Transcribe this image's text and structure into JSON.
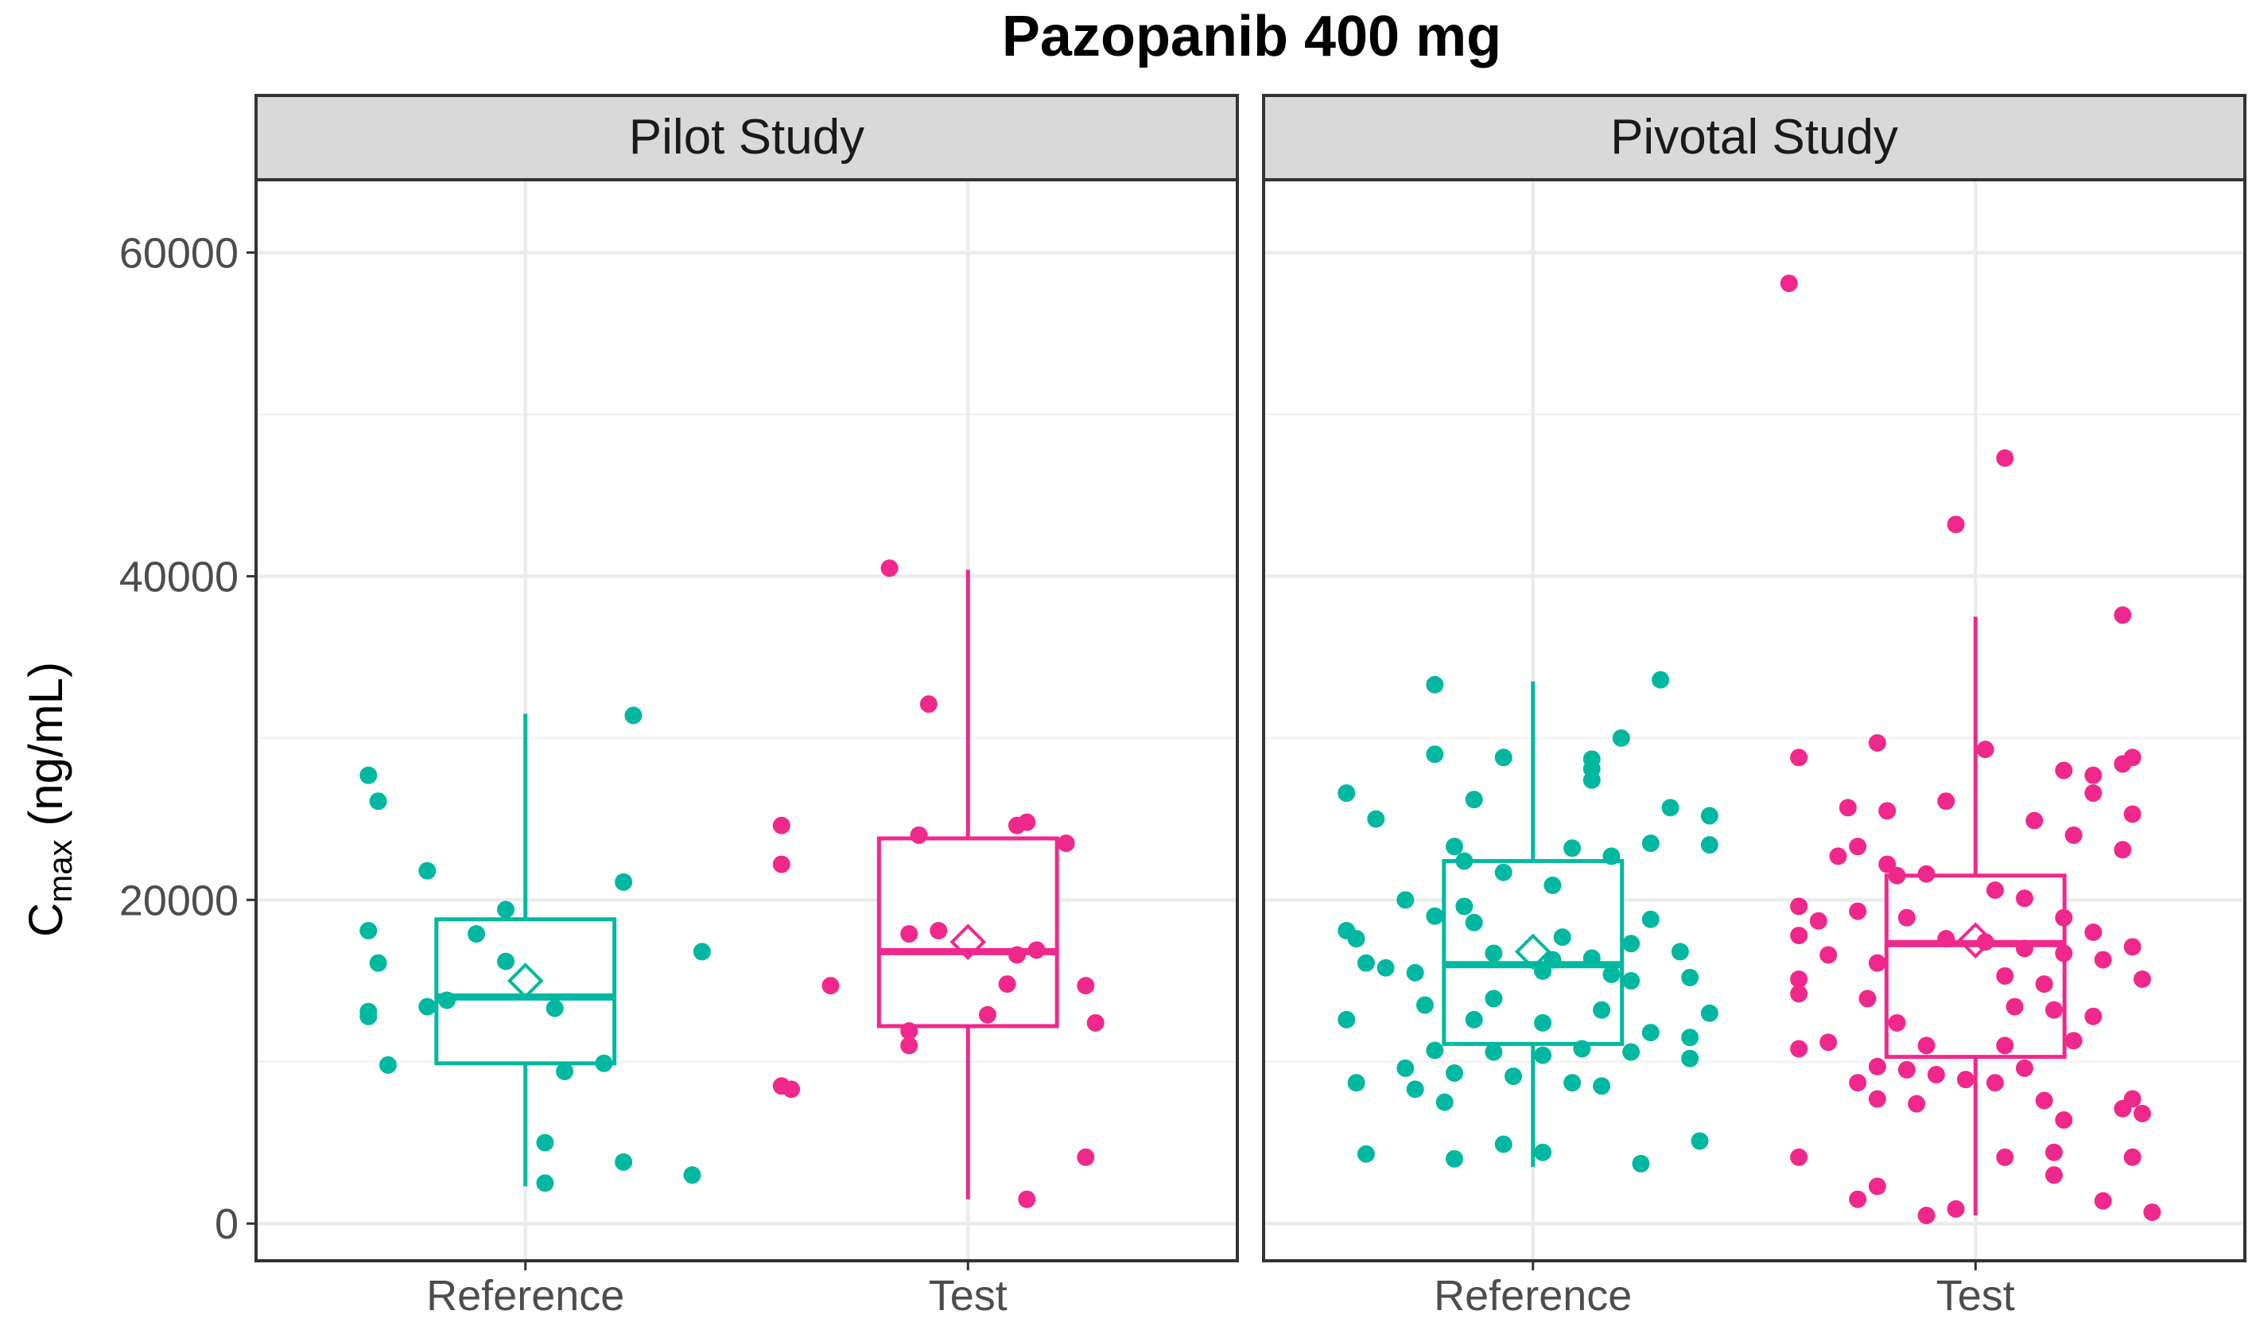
{
  "chart_data": {
    "type": "boxplot",
    "title": "Pazopanib 400 mg",
    "ylabel_main": "C",
    "ylabel_sub": "max",
    "ylabel_rest": " (ng/mL)",
    "ylim": [
      -2300,
      64500
    ],
    "yticks": [
      0,
      20000,
      40000,
      60000
    ],
    "ytick_labels": [
      "0",
      "20000",
      "40000",
      "60000"
    ],
    "categories": [
      "Reference",
      "Test"
    ],
    "colors": {
      "Reference": "#00b8a0",
      "Test": "#f0288c",
      "strip_bg": "#d9d9d9",
      "grid_major": "#ebebeb",
      "grid_minor": "#f2f2f2",
      "panel_border": "#333333"
    },
    "panels": [
      {
        "label": "Pilot Study",
        "groups": [
          {
            "name": "Reference",
            "whisker_low": 2300,
            "q1": 9900,
            "median": 14000,
            "q3": 18800,
            "whisker_high": 31500,
            "mean": 15000,
            "points": [
              [
                -0.16,
                27700
              ],
              [
                -0.15,
                26100
              ],
              [
                -0.1,
                21800
              ],
              [
                -0.16,
                18100
              ],
              [
                -0.15,
                16100
              ],
              [
                -0.05,
                17900
              ],
              [
                -0.16,
                13100
              ],
              [
                -0.16,
                12800
              ],
              [
                -0.1,
                13400
              ],
              [
                -0.08,
                13800
              ],
              [
                -0.02,
                16200
              ],
              [
                0.03,
                13300
              ],
              [
                -0.02,
                19400
              ],
              [
                0.1,
                21100
              ],
              [
                0.18,
                16800
              ],
              [
                0.11,
                31400
              ],
              [
                -0.14,
                9800
              ],
              [
                0.04,
                9400
              ],
              [
                0.08,
                9900
              ],
              [
                0.02,
                5000
              ],
              [
                0.1,
                3800
              ],
              [
                0.17,
                3000
              ],
              [
                0.02,
                2500
              ]
            ]
          },
          {
            "name": "Test",
            "whisker_low": 1500,
            "q1": 12200,
            "median": 16800,
            "q3": 23800,
            "whisker_high": 40400,
            "mean": 17400,
            "points": [
              [
                -0.08,
                40500
              ],
              [
                -0.04,
                32100
              ],
              [
                -0.19,
                24600
              ],
              [
                -0.19,
                22200
              ],
              [
                -0.05,
                24000
              ],
              [
                0.06,
                24800
              ],
              [
                0.05,
                24600
              ],
              [
                0.1,
                23500
              ],
              [
                -0.06,
                17900
              ],
              [
                -0.03,
                18100
              ],
              [
                0.07,
                16900
              ],
              [
                0.05,
                16600
              ],
              [
                -0.14,
                14700
              ],
              [
                0.04,
                14800
              ],
              [
                0.12,
                14700
              ],
              [
                -0.06,
                11900
              ],
              [
                -0.06,
                11000
              ],
              [
                0.02,
                12900
              ],
              [
                0.13,
                12400
              ],
              [
                -0.19,
                8500
              ],
              [
                -0.18,
                8300
              ],
              [
                0.12,
                4100
              ],
              [
                0.06,
                1500
              ]
            ]
          }
        ]
      },
      {
        "label": "Pivotal Study",
        "groups": [
          {
            "name": "Reference",
            "whisker_low": 3500,
            "q1": 11100,
            "median": 16000,
            "q3": 22400,
            "whisker_high": 33500,
            "mean": 16800,
            "points": [
              [
                -0.1,
                33300
              ],
              [
                0.13,
                33600
              ],
              [
                0.09,
                30000
              ],
              [
                -0.03,
                28800
              ],
              [
                0.06,
                28700
              ],
              [
                -0.1,
                29000
              ],
              [
                0.06,
                28100
              ],
              [
                0.06,
                27400
              ],
              [
                -0.19,
                26600
              ],
              [
                -0.06,
                26200
              ],
              [
                0.14,
                25700
              ],
              [
                0.18,
                25200
              ],
              [
                -0.16,
                25000
              ],
              [
                -0.08,
                23300
              ],
              [
                0.04,
                23200
              ],
              [
                0.12,
                23500
              ],
              [
                0.18,
                23400
              ],
              [
                0.08,
                22700
              ],
              [
                -0.07,
                22400
              ],
              [
                -0.03,
                21700
              ],
              [
                0.02,
                20900
              ],
              [
                -0.13,
                20000
              ],
              [
                -0.07,
                19600
              ],
              [
                -0.1,
                19000
              ],
              [
                -0.06,
                18600
              ],
              [
                0.12,
                18800
              ],
              [
                -0.19,
                18100
              ],
              [
                -0.18,
                17600
              ],
              [
                0.03,
                17700
              ],
              [
                0.1,
                17300
              ],
              [
                -0.04,
                16700
              ],
              [
                0.02,
                16300
              ],
              [
                0.06,
                16400
              ],
              [
                0.15,
                16800
              ],
              [
                -0.17,
                16100
              ],
              [
                -0.15,
                15800
              ],
              [
                -0.12,
                15500
              ],
              [
                0.01,
                15600
              ],
              [
                0.08,
                15400
              ],
              [
                0.1,
                15000
              ],
              [
                0.16,
                15200
              ],
              [
                -0.11,
                13500
              ],
              [
                -0.04,
                13900
              ],
              [
                0.07,
                13200
              ],
              [
                0.18,
                13000
              ],
              [
                -0.19,
                12600
              ],
              [
                -0.06,
                12600
              ],
              [
                0.01,
                12400
              ],
              [
                0.12,
                11800
              ],
              [
                0.16,
                11500
              ],
              [
                -0.1,
                10700
              ],
              [
                -0.04,
                10600
              ],
              [
                0.01,
                10400
              ],
              [
                0.05,
                10800
              ],
              [
                0.1,
                10600
              ],
              [
                0.16,
                10200
              ],
              [
                -0.13,
                9600
              ],
              [
                -0.08,
                9300
              ],
              [
                -0.02,
                9100
              ],
              [
                0.04,
                8700
              ],
              [
                -0.18,
                8700
              ],
              [
                -0.12,
                8300
              ],
              [
                0.07,
                8500
              ],
              [
                -0.09,
                7500
              ],
              [
                -0.17,
                4300
              ],
              [
                -0.03,
                4900
              ],
              [
                0.01,
                4400
              ],
              [
                -0.08,
                4000
              ],
              [
                0.11,
                3700
              ],
              [
                0.17,
                5100
              ]
            ]
          },
          {
            "name": "Test",
            "whisker_low": 500,
            "q1": 10300,
            "median": 17300,
            "q3": 21500,
            "whisker_high": 37500,
            "mean": 17500,
            "points": [
              [
                -0.19,
                58100
              ],
              [
                0.03,
                47300
              ],
              [
                -0.02,
                43200
              ],
              [
                0.15,
                37600
              ],
              [
                -0.18,
                28800
              ],
              [
                -0.1,
                29700
              ],
              [
                0.01,
                29300
              ],
              [
                0.09,
                28000
              ],
              [
                0.12,
                27700
              ],
              [
                -0.03,
                26100
              ],
              [
                0.16,
                28800
              ],
              [
                0.15,
                28400
              ],
              [
                0.12,
                26600
              ],
              [
                -0.13,
                25700
              ],
              [
                -0.09,
                25500
              ],
              [
                0.06,
                24900
              ],
              [
                0.16,
                25300
              ],
              [
                0.1,
                24000
              ],
              [
                -0.14,
                22700
              ],
              [
                -0.12,
                23300
              ],
              [
                0.15,
                23100
              ],
              [
                -0.09,
                22200
              ],
              [
                -0.08,
                21500
              ],
              [
                -0.05,
                21600
              ],
              [
                0.02,
                20600
              ],
              [
                0.05,
                20100
              ],
              [
                -0.18,
                19600
              ],
              [
                -0.12,
                19300
              ],
              [
                -0.16,
                18700
              ],
              [
                -0.07,
                18900
              ],
              [
                0.09,
                18900
              ],
              [
                0.12,
                18000
              ],
              [
                -0.18,
                17800
              ],
              [
                -0.03,
                17600
              ],
              [
                0.01,
                17400
              ],
              [
                0.05,
                17000
              ],
              [
                0.09,
                16700
              ],
              [
                0.16,
                17100
              ],
              [
                -0.15,
                16600
              ],
              [
                -0.1,
                16100
              ],
              [
                0.13,
                16300
              ],
              [
                -0.18,
                15100
              ],
              [
                0.03,
                15300
              ],
              [
                0.07,
                14800
              ],
              [
                0.17,
                15100
              ],
              [
                -0.18,
                14200
              ],
              [
                -0.11,
                13900
              ],
              [
                0.04,
                13400
              ],
              [
                0.08,
                13200
              ],
              [
                0.12,
                12800
              ],
              [
                -0.08,
                12400
              ],
              [
                -0.15,
                11200
              ],
              [
                -0.05,
                11000
              ],
              [
                0.03,
                11000
              ],
              [
                0.1,
                11300
              ],
              [
                -0.18,
                10800
              ],
              [
                -0.1,
                9700
              ],
              [
                -0.07,
                9500
              ],
              [
                -0.04,
                9200
              ],
              [
                -0.01,
                8900
              ],
              [
                0.02,
                8700
              ],
              [
                0.05,
                9600
              ],
              [
                -0.12,
                8700
              ],
              [
                -0.1,
                7700
              ],
              [
                -0.06,
                7400
              ],
              [
                0.07,
                7600
              ],
              [
                0.16,
                7700
              ],
              [
                0.15,
                7100
              ],
              [
                0.17,
                6800
              ],
              [
                0.09,
                6400
              ],
              [
                -0.18,
                4100
              ],
              [
                0.03,
                4100
              ],
              [
                0.08,
                4400
              ],
              [
                0.16,
                4100
              ],
              [
                0.08,
                3000
              ],
              [
                -0.1,
                2300
              ],
              [
                -0.12,
                1500
              ],
              [
                -0.02,
                900
              ],
              [
                0.13,
                1400
              ],
              [
                -0.05,
                500
              ],
              [
                0.18,
                700
              ]
            ]
          }
        ]
      }
    ]
  }
}
